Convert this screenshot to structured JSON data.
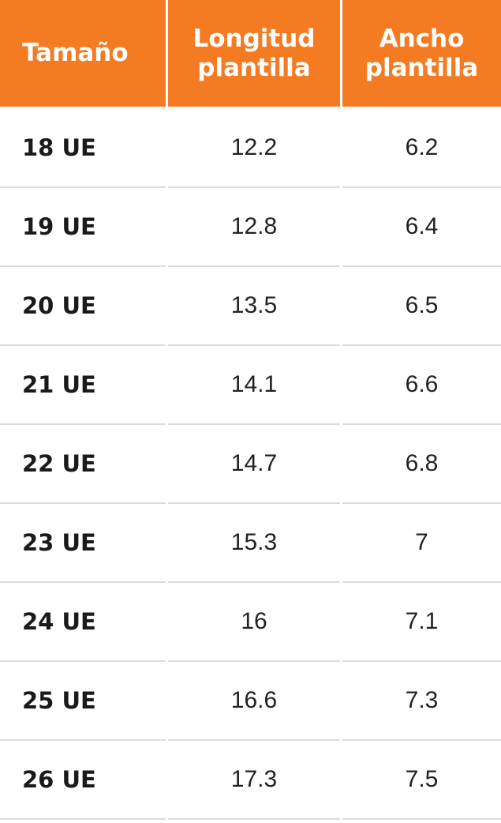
{
  "table": {
    "header": [
      "Tamaño",
      "Longitud plantilla",
      "Ancho plantilla"
    ],
    "rows": [
      [
        "18 UE",
        "12.2",
        "6.2"
      ],
      [
        "19 UE",
        "12.8",
        "6.4"
      ],
      [
        "20 UE",
        "13.5",
        "6.5"
      ],
      [
        "21 UE",
        "14.1",
        "6.6"
      ],
      [
        "22 UE",
        "14.7",
        "6.8"
      ],
      [
        "23 UE",
        "15.3",
        "7"
      ],
      [
        "24 UE",
        "16",
        "7.1"
      ],
      [
        "25 UE",
        "16.6",
        "7.3"
      ],
      [
        "26 UE",
        "17.3",
        "7.5"
      ]
    ]
  }
}
